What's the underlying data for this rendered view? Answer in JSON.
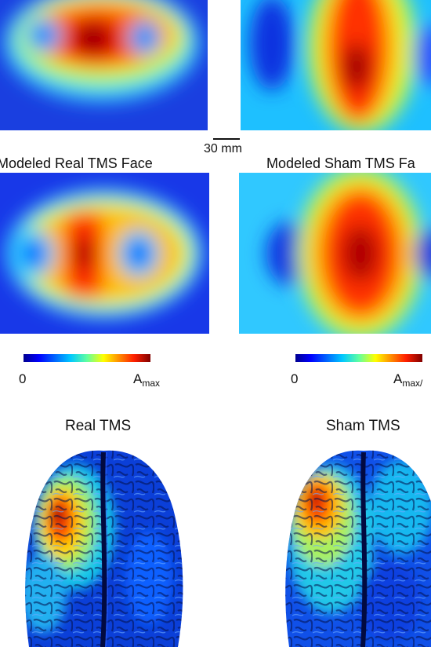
{
  "panels": {
    "real_face_label": "Modeled Real TMS Face",
    "sham_face_label": "Modeled Sham TMS Fa"
  },
  "scale_bar": {
    "label": "30 mm"
  },
  "colorbars": [
    {
      "min": "0",
      "max_base": "A",
      "max_sub": "max"
    },
    {
      "min": "0",
      "max_base": "A",
      "max_sub": "max/"
    }
  ],
  "brains": {
    "real_title": "Real TMS",
    "sham_title": "Sham TMS"
  },
  "colormap": [
    "#00008f",
    "#0000ff",
    "#00bfff",
    "#40ffbf",
    "#ffff00",
    "#ff8000",
    "#ff0000",
    "#800000"
  ]
}
